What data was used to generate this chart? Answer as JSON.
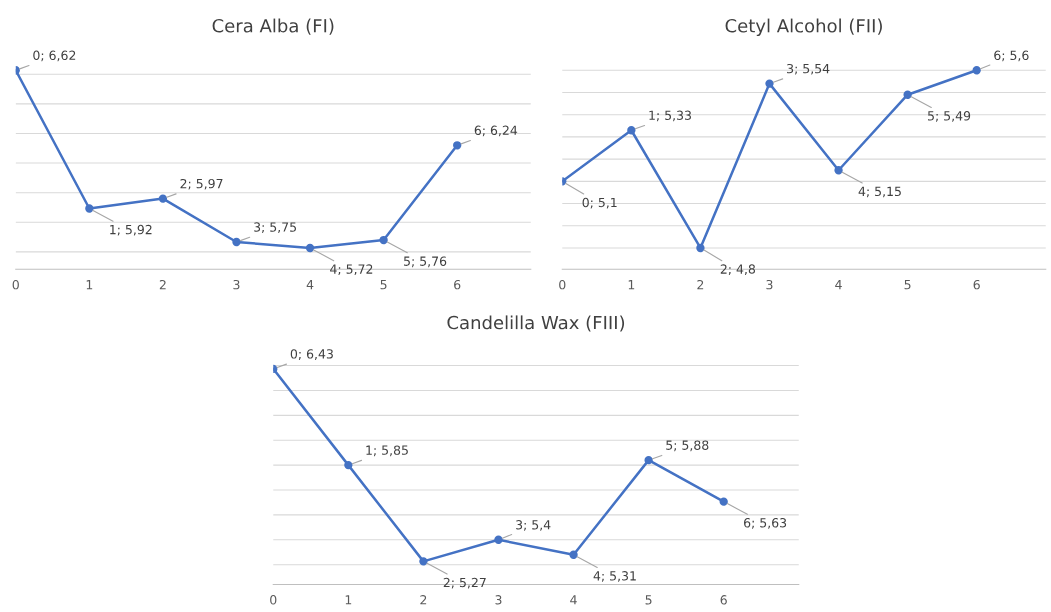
{
  "chart_data": [
    {
      "type": "line",
      "title": "Cera Alba (FI)",
      "x": [
        0,
        1,
        2,
        3,
        4,
        5,
        6
      ],
      "xlim": [
        0,
        7
      ],
      "xticks": [
        0,
        1,
        2,
        3,
        4,
        5,
        6
      ],
      "tick_labels": "x",
      "grid": "y",
      "marker": "circle",
      "line_style": "solid",
      "series": [
        {
          "color": "#4472c4",
          "values": [
            6.62,
            5.92,
            5.97,
            5.75,
            5.72,
            5.76,
            6.24
          ],
          "value_labels": [
            "0; 6,62",
            "1; 5,92",
            "2; 5,97",
            "3; 5,75",
            "4; 5,72",
            "5; 5,76",
            "6; 6,24"
          ]
        }
      ]
    },
    {
      "type": "line",
      "title": "Cetyl Alcohol (FII)",
      "x": [
        0,
        1,
        2,
        3,
        4,
        5,
        6
      ],
      "xlim": [
        0,
        7
      ],
      "xticks": [
        0,
        1,
        2,
        3,
        4,
        5,
        6
      ],
      "tick_labels": "x",
      "grid": "y",
      "marker": "circle",
      "line_style": "solid",
      "series": [
        {
          "color": "#4472c4",
          "values": [
            5.1,
            5.33,
            4.8,
            5.54,
            5.15,
            5.49,
            5.6
          ],
          "value_labels": [
            "0; 5,1",
            "1; 5,33",
            "2; 4,8",
            "3; 5,54",
            "4; 5,15",
            "5; 5,49",
            "6; 5,6"
          ]
        }
      ]
    },
    {
      "type": "line",
      "title": "Candelilla Wax (FIII)",
      "x": [
        0,
        1,
        2,
        3,
        4,
        5,
        6
      ],
      "xlim": [
        0,
        7
      ],
      "xticks": [
        0,
        1,
        2,
        3,
        4,
        5,
        6
      ],
      "tick_labels": "x",
      "grid": "y",
      "marker": "circle",
      "line_style": "solid",
      "series": [
        {
          "color": "#4472c4",
          "values": [
            6.43,
            5.85,
            5.27,
            5.4,
            5.31,
            5.88,
            5.63
          ],
          "value_labels": [
            "0; 6,43",
            "1; 5,85",
            "2; 5,27",
            "3; 5,4",
            "4; 5,31",
            "5; 5,88",
            "6; 5,63"
          ]
        }
      ]
    }
  ]
}
